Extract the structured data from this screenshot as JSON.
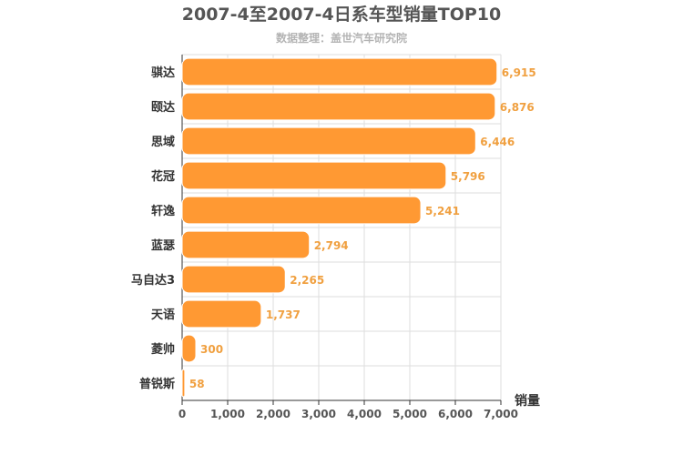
{
  "chart_data": {
    "type": "bar",
    "orientation": "horizontal",
    "title": "2007-4至2007-4日系车型销量TOP10",
    "subtitle": "数据整理：盖世汽车研究院",
    "xlabel": "销量",
    "ylabel": "",
    "xlim": [
      0,
      7000
    ],
    "xticks": [
      "0",
      "1,000",
      "2,000",
      "3,000",
      "4,000",
      "5,000",
      "6,000",
      "7,000"
    ],
    "categories": [
      "骐达",
      "颐达",
      "思域",
      "花冠",
      "轩逸",
      "蓝瑟",
      "马自达3",
      "天语",
      "菱帅",
      "普锐斯"
    ],
    "values": [
      6915,
      6876,
      6446,
      5796,
      5241,
      2794,
      2265,
      1737,
      300,
      58
    ],
    "value_labels": [
      "6,915",
      "6,876",
      "6,446",
      "5,796",
      "5,241",
      "2,794",
      "2,265",
      "1,737",
      "300",
      "58"
    ],
    "bar_color": "#ff9933",
    "label_color": "#f0a040",
    "grid": true
  }
}
